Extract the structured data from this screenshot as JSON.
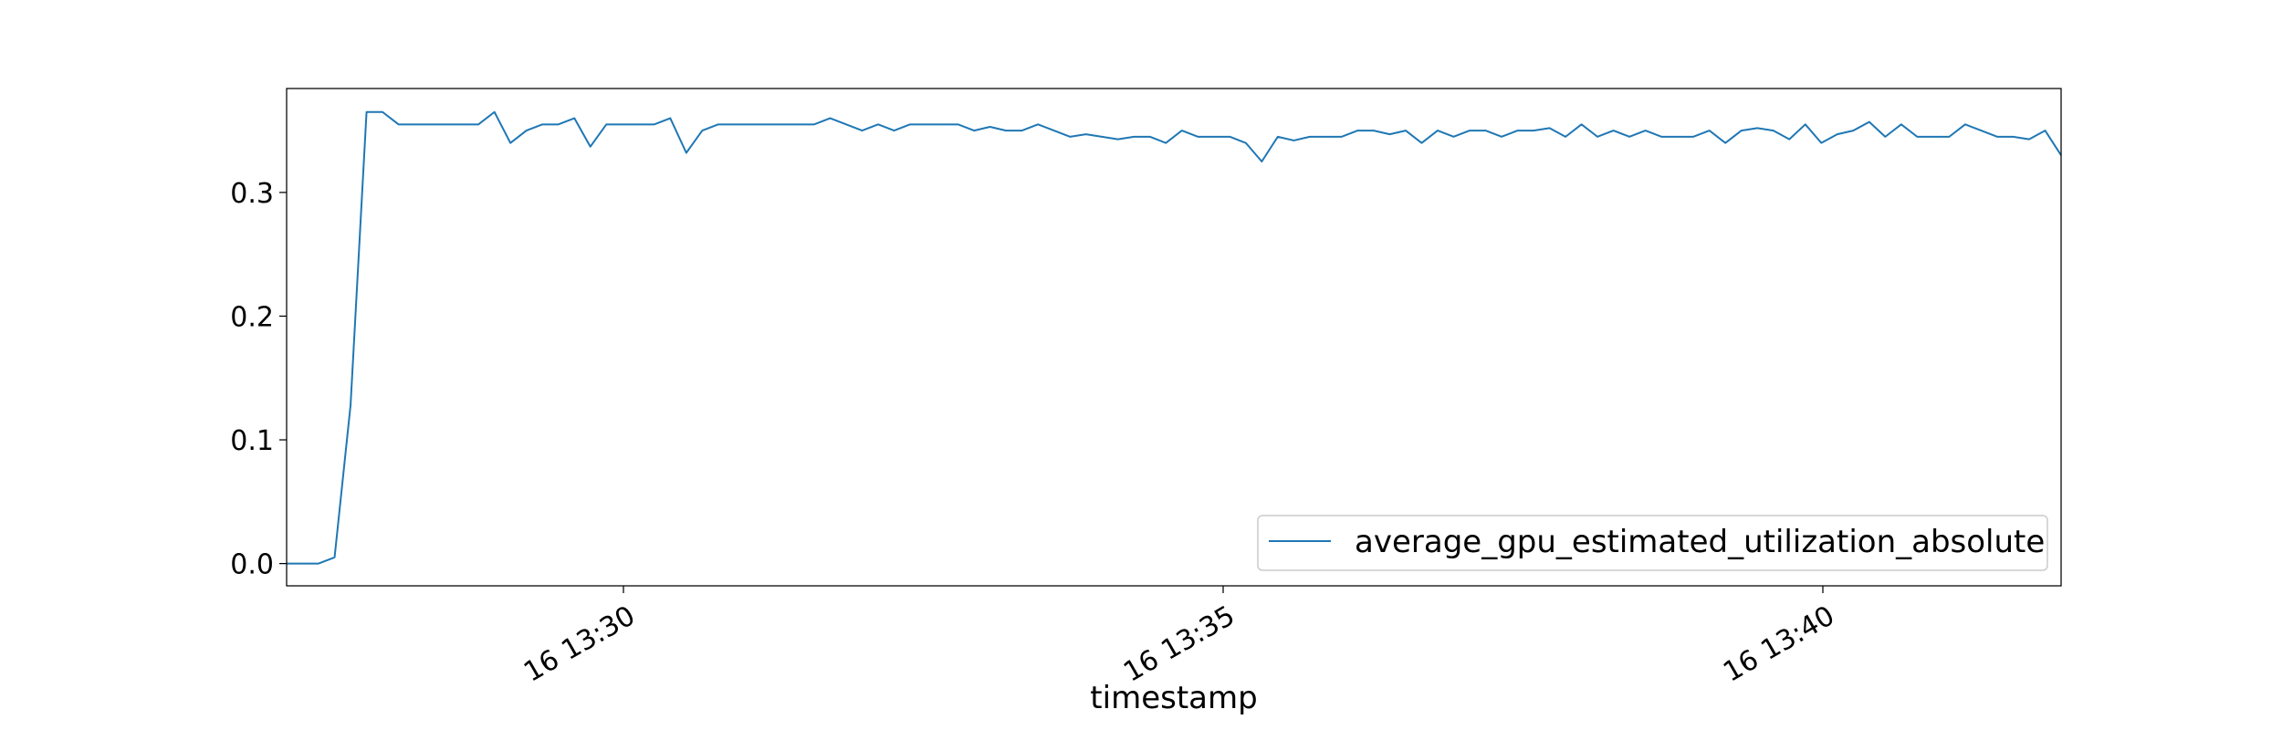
{
  "chart_data": {
    "type": "line",
    "xlabel": "timestamp",
    "ylabel": "",
    "x_ticks": [
      "16 13:30",
      "16 13:35",
      "16 13:40"
    ],
    "y_ticks": [
      "0.0",
      "0.1",
      "0.2",
      "0.3"
    ],
    "ylim": [
      -0.018,
      0.384
    ],
    "legend_position": "lower-right",
    "grid": false,
    "series": [
      {
        "name": "average_gpu_estimated_utilization_absolute",
        "color": "#1f77b4",
        "values": [
          0.0,
          0.0,
          0.0,
          0.005,
          0.128,
          0.365,
          0.365,
          0.355,
          0.355,
          0.355,
          0.355,
          0.355,
          0.355,
          0.365,
          0.34,
          0.35,
          0.355,
          0.355,
          0.36,
          0.337,
          0.355,
          0.355,
          0.355,
          0.355,
          0.36,
          0.332,
          0.35,
          0.355,
          0.355,
          0.355,
          0.355,
          0.355,
          0.355,
          0.355,
          0.36,
          0.355,
          0.35,
          0.355,
          0.35,
          0.355,
          0.355,
          0.355,
          0.355,
          0.35,
          0.353,
          0.35,
          0.35,
          0.355,
          0.35,
          0.345,
          0.347,
          0.345,
          0.343,
          0.345,
          0.345,
          0.34,
          0.35,
          0.345,
          0.345,
          0.345,
          0.34,
          0.325,
          0.345,
          0.342,
          0.345,
          0.345,
          0.345,
          0.35,
          0.35,
          0.347,
          0.35,
          0.34,
          0.35,
          0.345,
          0.35,
          0.35,
          0.345,
          0.35,
          0.35,
          0.352,
          0.345,
          0.355,
          0.345,
          0.35,
          0.345,
          0.35,
          0.345,
          0.345,
          0.345,
          0.35,
          0.34,
          0.35,
          0.352,
          0.35,
          0.343,
          0.355,
          0.34,
          0.347,
          0.35,
          0.357,
          0.345,
          0.355,
          0.345,
          0.345,
          0.345,
          0.355,
          0.35,
          0.345,
          0.345,
          0.343,
          0.35,
          0.33
        ]
      }
    ]
  }
}
